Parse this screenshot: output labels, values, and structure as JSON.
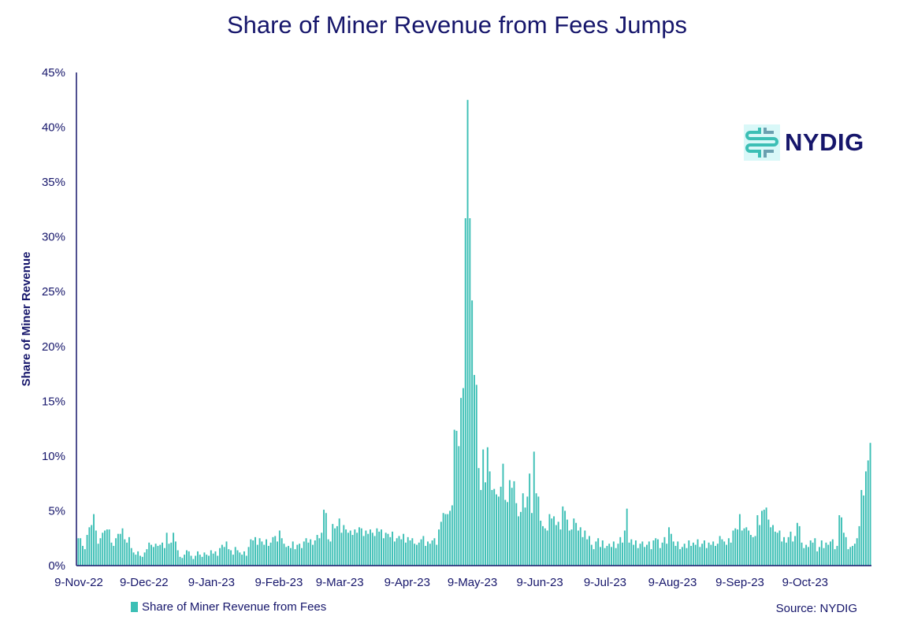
{
  "title": "Share of Miner Revenue from Fees Jumps",
  "legend_label": "Share of Miner Revenue from Fees",
  "source": "Source: NYDIG",
  "logo_text": "NYDIG",
  "colors": {
    "bar": "#3cbfb5",
    "text": "#16166b"
  },
  "chart_data": {
    "type": "bar",
    "title": "Share of Miner Revenue from Fees Jumps",
    "xlabel": "",
    "ylabel": "Share of Miner Revenue",
    "ylim": [
      0,
      45
    ],
    "yticks": [
      0,
      5,
      10,
      15,
      20,
      25,
      30,
      35,
      40,
      45
    ],
    "ytick_labels": [
      "0%",
      "5%",
      "10%",
      "15%",
      "20%",
      "25%",
      "30%",
      "35%",
      "40%",
      "45%"
    ],
    "start_date": "9-Nov-22",
    "xtick_labels": [
      "9-Nov-22",
      "9-Dec-22",
      "9-Jan-23",
      "9-Feb-23",
      "9-Mar-23",
      "9-Apr-23",
      "9-May-23",
      "9-Jun-23",
      "9-Jul-23",
      "9-Aug-23",
      "9-Sep-23",
      "9-Oct-23"
    ],
    "xtick_day_index": [
      0,
      30,
      61,
      92,
      120,
      151,
      181,
      212,
      242,
      273,
      304,
      334
    ],
    "legend": "bottom-left",
    "grid": false,
    "series": [
      {
        "name": "Share of Miner Revenue from Fees",
        "unit": "%",
        "values": [
          2.5,
          2.5,
          1.8,
          1.5,
          2.8,
          3.5,
          3.7,
          4.7,
          3.2,
          2.0,
          2.5,
          3.0,
          3.2,
          3.3,
          3.3,
          2.1,
          1.8,
          2.5,
          2.9,
          2.9,
          3.4,
          2.4,
          2.1,
          2.6,
          1.6,
          1.2,
          1.0,
          1.3,
          0.9,
          0.8,
          1.2,
          1.5,
          2.1,
          1.9,
          1.7,
          2.0,
          1.8,
          1.9,
          2.1,
          1.6,
          3.0,
          2.0,
          2.1,
          3.0,
          2.2,
          1.4,
          0.8,
          0.7,
          1.0,
          1.4,
          1.3,
          0.9,
          0.6,
          0.9,
          1.3,
          1.0,
          0.8,
          1.2,
          1.0,
          0.9,
          1.4,
          1.1,
          1.3,
          0.9,
          1.6,
          1.9,
          1.7,
          2.2,
          1.5,
          1.4,
          1.0,
          1.7,
          1.4,
          1.2,
          1.0,
          1.3,
          0.9,
          1.7,
          2.4,
          2.3,
          2.6,
          1.9,
          2.5,
          2.2,
          1.9,
          2.4,
          1.8,
          2.1,
          2.6,
          2.7,
          2.2,
          3.2,
          2.5,
          2.0,
          1.7,
          1.8,
          1.6,
          2.2,
          1.5,
          1.9,
          2.0,
          1.6,
          2.2,
          2.5,
          2.1,
          2.4,
          1.9,
          2.3,
          2.8,
          2.5,
          3.0,
          5.1,
          4.8,
          2.4,
          2.2,
          3.8,
          3.4,
          3.6,
          4.3,
          3.0,
          3.7,
          3.3,
          3.0,
          3.2,
          2.8,
          3.3,
          3.0,
          3.5,
          3.4,
          2.7,
          3.2,
          2.9,
          3.3,
          3.0,
          2.7,
          3.4,
          3.1,
          3.3,
          2.5,
          3.0,
          2.9,
          2.6,
          3.1,
          2.2,
          2.5,
          2.7,
          2.4,
          2.9,
          2.1,
          2.6,
          2.3,
          2.5,
          2.0,
          1.9,
          2.1,
          2.4,
          2.7,
          1.8,
          2.2,
          2.0,
          2.3,
          2.5,
          1.9,
          3.3,
          4.0,
          4.8,
          4.7,
          4.7,
          5.0,
          5.5,
          12.4,
          12.3,
          10.9,
          15.3,
          16.2,
          31.7,
          42.5,
          31.7,
          24.2,
          17.4,
          16.5,
          8.9,
          6.9,
          10.6,
          7.6,
          10.8,
          8.6,
          6.9,
          7.0,
          6.5,
          6.3,
          7.2,
          9.3,
          6.0,
          5.8,
          7.8,
          7.1,
          7.7,
          5.7,
          4.5,
          4.9,
          6.6,
          5.3,
          6.3,
          8.4,
          4.8,
          10.4,
          6.6,
          6.3,
          4.1,
          3.6,
          3.4,
          3.2,
          4.7,
          4.3,
          4.5,
          3.7,
          4.0,
          3.3,
          5.4,
          5.0,
          4.2,
          3.2,
          3.3,
          4.3,
          3.9,
          3.2,
          3.5,
          2.6,
          3.2,
          2.4,
          2.7,
          1.9,
          1.5,
          2.2,
          2.5,
          1.7,
          2.3,
          1.6,
          1.8,
          2.0,
          1.7,
          2.2,
          1.6,
          2.0,
          2.6,
          2.1,
          3.2,
          5.2,
          2.1,
          2.4,
          1.9,
          2.3,
          1.6,
          2.0,
          2.2,
          1.7,
          1.9,
          2.2,
          1.5,
          2.3,
          2.5,
          2.4,
          1.6,
          2.1,
          2.6,
          2.0,
          3.5,
          2.9,
          2.2,
          1.8,
          2.2,
          1.5,
          1.7,
          2.0,
          1.6,
          2.3,
          1.8,
          2.1,
          1.9,
          2.4,
          1.7,
          2.0,
          2.3,
          1.6,
          2.1,
          1.9,
          2.2,
          1.8,
          2.0,
          2.7,
          2.4,
          2.2,
          1.9,
          2.5,
          2.1,
          3.2,
          3.4,
          3.3,
          4.7,
          3.2,
          3.4,
          3.5,
          3.2,
          2.8,
          2.6,
          2.7,
          4.6,
          3.7,
          5.0,
          5.1,
          5.3,
          4.2,
          3.5,
          3.7,
          3.1,
          3.0,
          3.2,
          2.2,
          2.6,
          2.1,
          2.6,
          3.1,
          2.2,
          2.7,
          3.9,
          3.6,
          2.1,
          1.6,
          1.9,
          1.7,
          2.3,
          2.1,
          2.5,
          1.3,
          1.7,
          2.3,
          1.6,
          2.1,
          1.9,
          2.2,
          2.4,
          1.5,
          1.8,
          4.6,
          4.4,
          3.0,
          2.6,
          1.5,
          1.7,
          1.8,
          2.0,
          2.5,
          3.6,
          6.9,
          6.4,
          8.6,
          9.6,
          11.2
        ]
      }
    ]
  }
}
